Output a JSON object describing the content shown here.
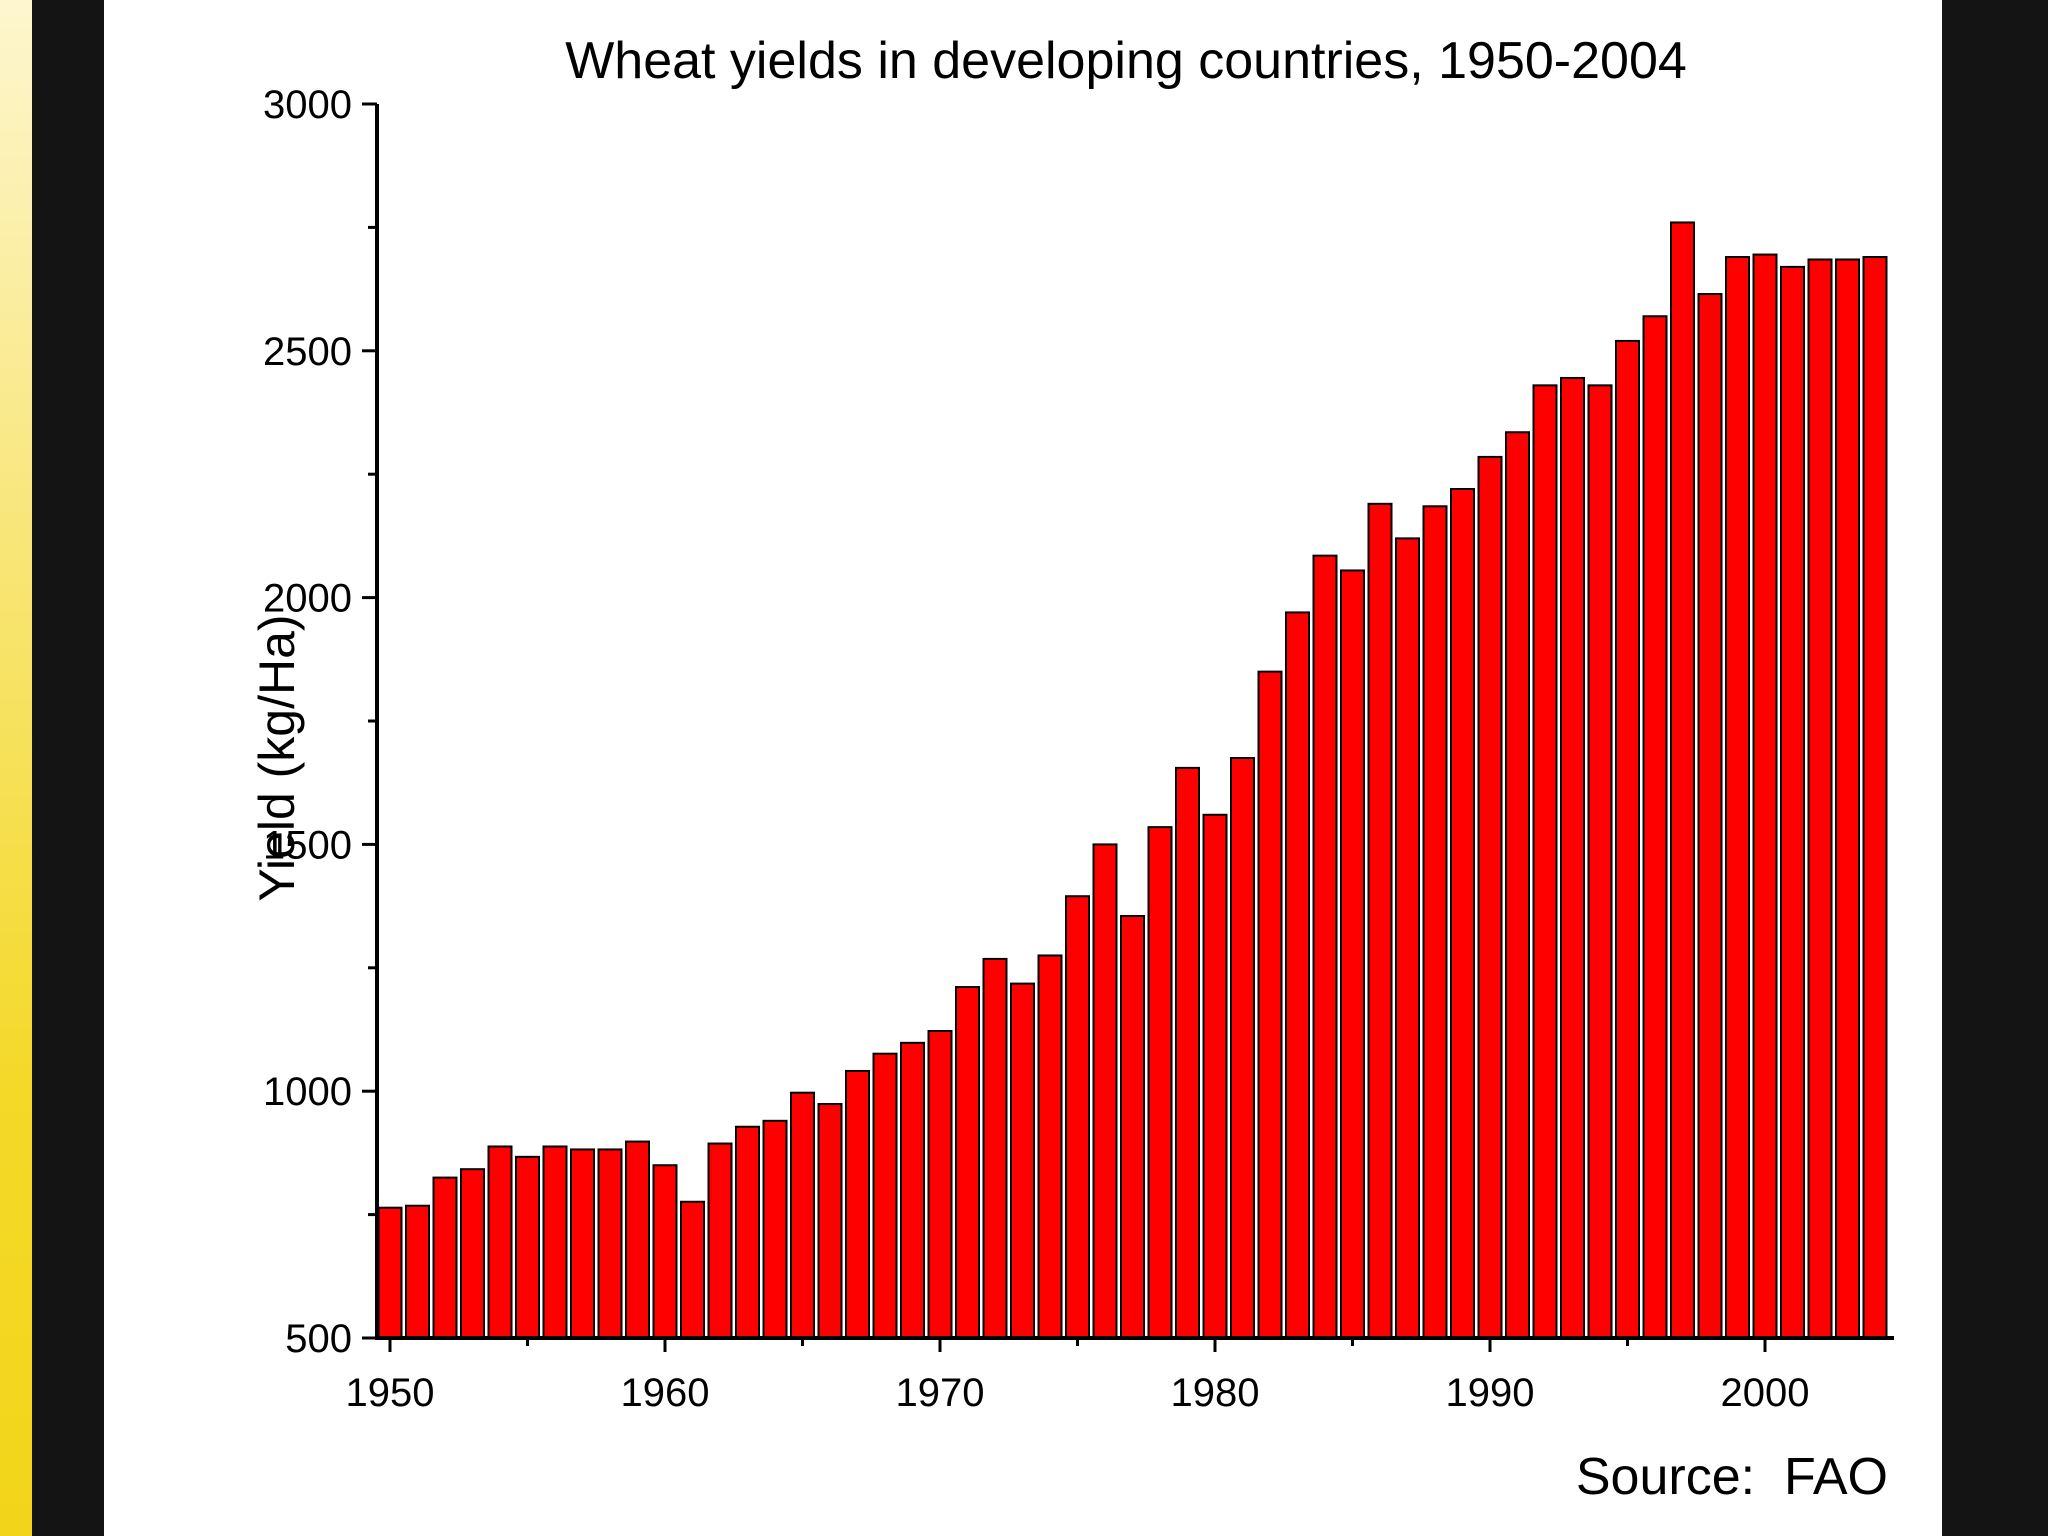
{
  "chart_data": {
    "type": "bar",
    "title": "Wheat yields in developing countries, 1950-2004",
    "xlabel": "",
    "ylabel": "Yield (kg/Ha)",
    "source": "Source:  FAO",
    "ylim": [
      500,
      3000
    ],
    "xlim": [
      1950,
      2004
    ],
    "yticks": [
      "500",
      "1000",
      "1500",
      "2000",
      "2500",
      "3000"
    ],
    "xticks": [
      "1950",
      "1960",
      "1970",
      "1980",
      "1990",
      "2000"
    ],
    "categories": [
      1950,
      1951,
      1952,
      1953,
      1954,
      1955,
      1956,
      1957,
      1958,
      1959,
      1960,
      1961,
      1962,
      1963,
      1964,
      1965,
      1966,
      1967,
      1968,
      1969,
      1970,
      1971,
      1972,
      1973,
      1974,
      1975,
      1976,
      1977,
      1978,
      1979,
      1980,
      1981,
      1982,
      1983,
      1984,
      1985,
      1986,
      1987,
      1988,
      1989,
      1990,
      1991,
      1992,
      1993,
      1994,
      1995,
      1996,
      1997,
      1998,
      1999,
      2000,
      2001,
      2002,
      2003,
      2004
    ],
    "values": [
      764,
      768,
      825,
      842,
      888,
      867,
      888,
      882,
      882,
      898,
      850,
      776,
      894,
      928,
      940,
      997,
      974,
      1041,
      1076,
      1098,
      1122,
      1211,
      1268,
      1218,
      1275,
      1395,
      1500,
      1355,
      1535,
      1655,
      1560,
      1675,
      1850,
      1970,
      2085,
      2055,
      2190,
      2120,
      2185,
      2220,
      2285,
      2335,
      2430,
      2445,
      2430,
      2520,
      2570,
      2760,
      2615,
      2690,
      2695,
      2670,
      2685,
      2685,
      2690
    ],
    "grid": false,
    "legend": "none",
    "bar_color": "#ff0000",
    "bar_edge_color": "#000000"
  }
}
